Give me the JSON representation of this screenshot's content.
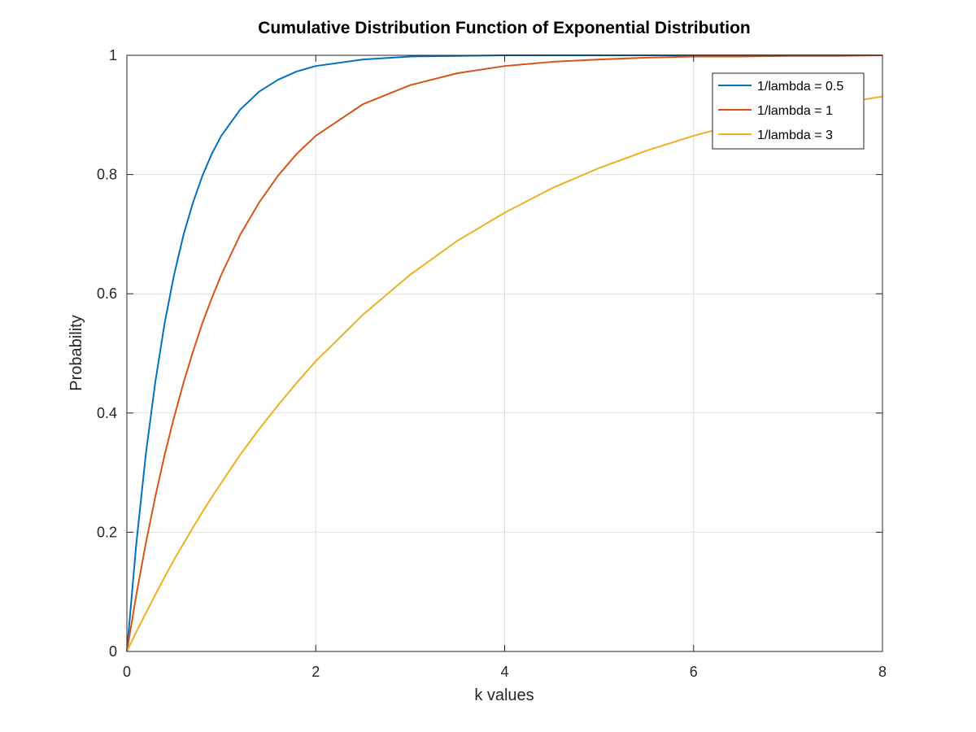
{
  "chart_data": {
    "type": "line",
    "title": "Cumulative Distribution Function of Exponential Distribution",
    "xlabel": "k values",
    "ylabel": "Probability",
    "xlim": [
      0,
      8
    ],
    "ylim": [
      0,
      1
    ],
    "xticks": [
      0,
      2,
      4,
      6,
      8
    ],
    "xtick_labels": [
      "0",
      "2",
      "4",
      "6",
      "8"
    ],
    "yticks": [
      0,
      0.2,
      0.4,
      0.6,
      0.8,
      1
    ],
    "ytick_labels": [
      "0",
      "0.2",
      "0.4",
      "0.6",
      "0.8",
      "1"
    ],
    "grid": true,
    "legend_position": "top-right",
    "x": [
      0,
      0.1,
      0.2,
      0.3,
      0.4,
      0.5,
      0.6,
      0.7,
      0.8,
      0.9,
      1.0,
      1.2,
      1.4,
      1.6,
      1.8,
      2.0,
      2.5,
      3.0,
      3.5,
      4.0,
      4.5,
      5.0,
      5.5,
      6.0,
      6.5,
      7.0,
      7.5,
      8.0
    ],
    "series": [
      {
        "name": "1/lambda = 0.5",
        "color": "#0072BD",
        "values": [
          0,
          0.181,
          0.33,
          0.451,
          0.551,
          0.632,
          0.699,
          0.753,
          0.798,
          0.835,
          0.865,
          0.909,
          0.939,
          0.959,
          0.973,
          0.982,
          0.993,
          0.998,
          0.999,
          1.0,
          1.0,
          1.0,
          1.0,
          1.0,
          1.0,
          1.0,
          1.0,
          1.0
        ]
      },
      {
        "name": "1/lambda = 1",
        "color": "#D95319",
        "values": [
          0,
          0.095,
          0.181,
          0.259,
          0.33,
          0.393,
          0.451,
          0.503,
          0.551,
          0.593,
          0.632,
          0.699,
          0.753,
          0.798,
          0.835,
          0.865,
          0.918,
          0.95,
          0.97,
          0.982,
          0.989,
          0.993,
          0.996,
          0.998,
          0.998,
          0.999,
          0.999,
          1.0
        ]
      },
      {
        "name": "1/lambda = 3",
        "color": "#EDB120",
        "values": [
          0,
          0.033,
          0.064,
          0.095,
          0.125,
          0.154,
          0.181,
          0.208,
          0.234,
          0.259,
          0.283,
          0.33,
          0.373,
          0.413,
          0.451,
          0.487,
          0.565,
          0.632,
          0.689,
          0.736,
          0.777,
          0.811,
          0.84,
          0.865,
          0.886,
          0.903,
          0.918,
          0.931
        ]
      }
    ]
  }
}
